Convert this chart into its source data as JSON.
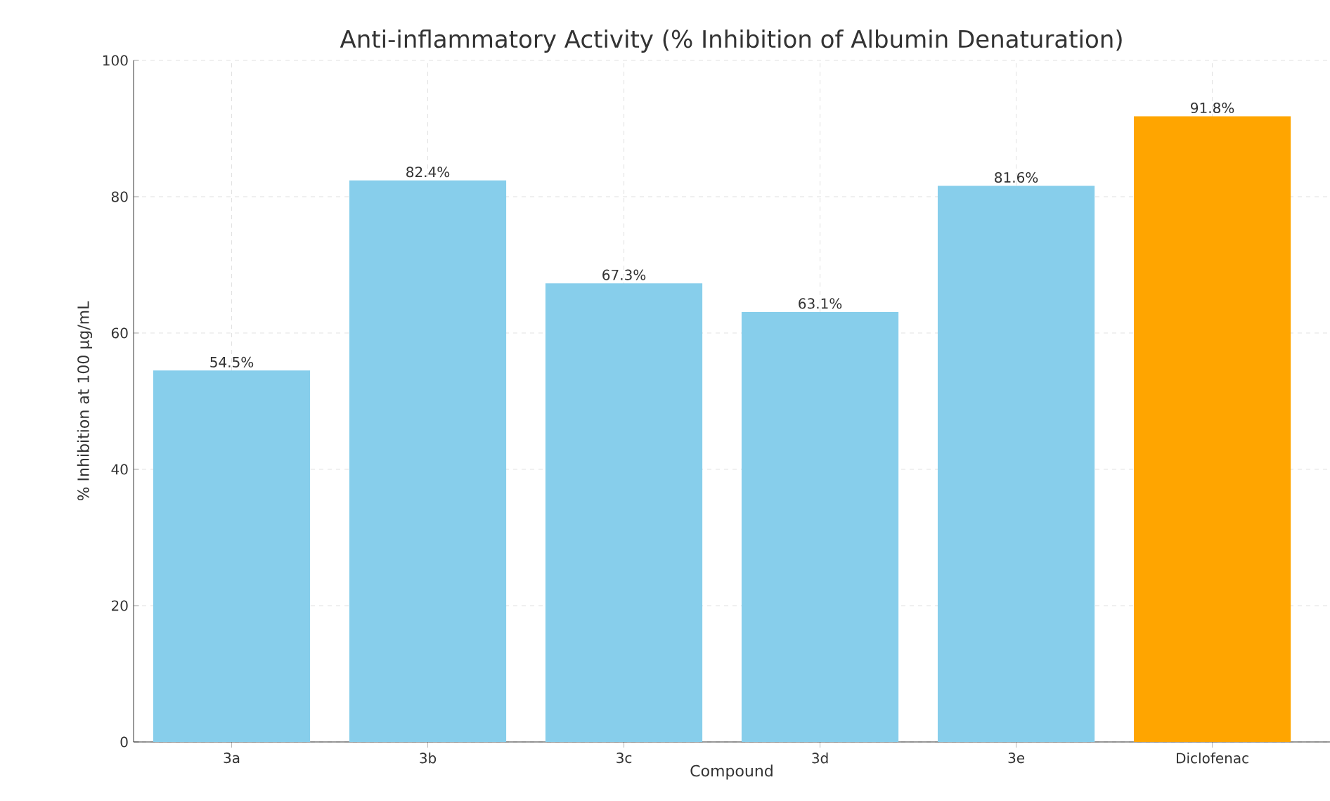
{
  "chart_data": {
    "type": "bar",
    "title": "Anti-inflammatory Activity (% Inhibition of Albumin Denaturation)",
    "xlabel": "Compound",
    "ylabel": "% Inhibition at 100 µg/mL",
    "categories": [
      "3a",
      "3b",
      "3c",
      "3d",
      "3e",
      "Diclofenac"
    ],
    "values": [
      54.5,
      82.4,
      67.3,
      63.1,
      81.6,
      91.8
    ],
    "value_labels": [
      "54.5%",
      "82.4%",
      "67.3%",
      "63.1%",
      "81.6%",
      "91.8%"
    ],
    "colors": [
      "#87ceeb",
      "#87ceeb",
      "#87ceeb",
      "#87ceeb",
      "#87ceeb",
      "#ffa500"
    ],
    "ylim": [
      0,
      100
    ],
    "yticks": [
      0,
      20,
      40,
      60,
      80,
      100
    ],
    "grid": true
  }
}
